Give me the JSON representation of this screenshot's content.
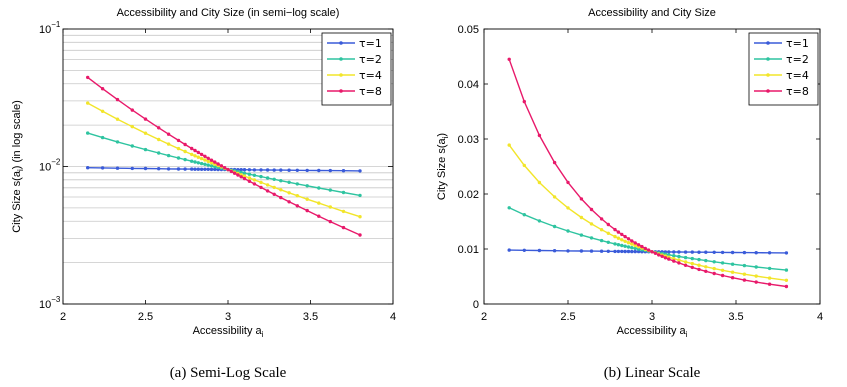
{
  "chart_data": [
    {
      "type": "line",
      "title": "Accessibility and City Size (in semi−log scale)",
      "xlabel": "Accessibility a",
      "xlabel_sub": "i",
      "ylabel": "City Size s(a",
      "ylabel_sub": "i",
      "ylabel_suffix": ") (in log scale)",
      "yscale": "log",
      "xlim": [
        2,
        4
      ],
      "ylim": [
        0.001,
        0.1
      ],
      "x_ticks": [
        2,
        2.5,
        3,
        3.5,
        4
      ],
      "x_tick_labels": [
        "2",
        "2.5",
        "3",
        "3.5",
        "4"
      ],
      "y_ticks": [
        0.001,
        0.01,
        0.1
      ],
      "y_tick_base": "10",
      "y_tick_exponents": [
        "−3",
        "−2",
        "−1"
      ],
      "grid": true,
      "legend_position": "top-right",
      "caption": "(a)  Semi-Log Scale"
    },
    {
      "type": "line",
      "title": "Accessibility and City Size",
      "xlabel": "Accessibility a",
      "xlabel_sub": "i",
      "ylabel": "City Size s(a",
      "ylabel_sub": "i",
      "ylabel_suffix": ")",
      "yscale": "linear",
      "xlim": [
        2,
        4
      ],
      "ylim": [
        0,
        0.05
      ],
      "x_ticks": [
        2,
        2.5,
        3,
        3.5,
        4
      ],
      "x_tick_labels": [
        "2",
        "2.5",
        "3",
        "3.5",
        "4"
      ],
      "y_ticks": [
        0,
        0.01,
        0.02,
        0.03,
        0.04,
        0.05
      ],
      "y_tick_labels": [
        "0",
        "0.01",
        "0.02",
        "0.03",
        "0.04",
        "0.05"
      ],
      "grid": false,
      "legend_position": "top-right",
      "caption": "(b)  Linear Scale"
    }
  ],
  "series": [
    {
      "name": "τ=1",
      "tau": 1,
      "color": "#3a5bd9"
    },
    {
      "name": "τ=2",
      "tau": 2,
      "color": "#2ec4a0"
    },
    {
      "name": "τ=4",
      "tau": 4,
      "color": "#f2e52a"
    },
    {
      "name": "τ=8",
      "tau": 8,
      "color": "#e8196a"
    }
  ],
  "x_points": [
    2.15,
    2.24,
    2.33,
    2.42,
    2.5,
    2.58,
    2.64,
    2.7,
    2.74,
    2.78,
    2.8,
    2.82,
    2.84,
    2.86,
    2.88,
    2.9,
    2.92,
    2.94,
    2.96,
    2.98,
    3.0,
    3.02,
    3.04,
    3.06,
    3.08,
    3.1,
    3.13,
    3.16,
    3.2,
    3.24,
    3.28,
    3.32,
    3.37,
    3.42,
    3.48,
    3.55,
    3.62,
    3.7,
    3.8
  ],
  "model": {
    "y_at_3": 0.0095,
    "y_at_2_15_tau1": 0.0098,
    "note_values": [
      0.0098,
      0.0175,
      0.0289,
      0.0445
    ]
  }
}
